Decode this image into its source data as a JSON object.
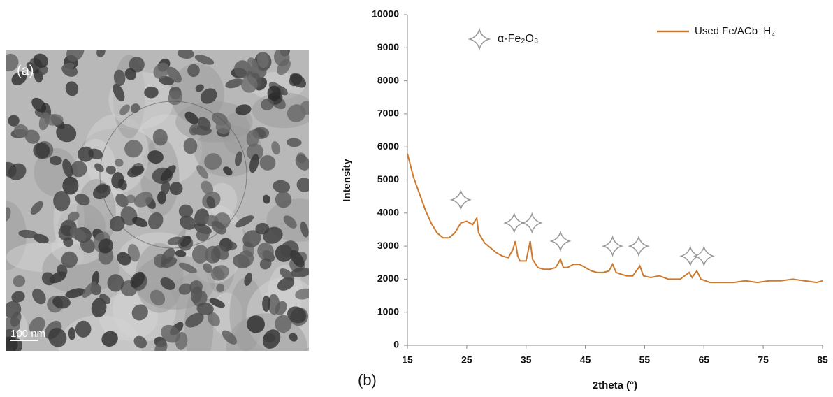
{
  "image": {
    "label": "(a)",
    "scale_bar": "100 nm"
  },
  "chart_data": {
    "type": "line",
    "panel_label": "(b)",
    "xlabel": "2theta (°)",
    "ylabel": "Intensity",
    "xlim": [
      15,
      85
    ],
    "xticks": [
      15,
      25,
      35,
      45,
      55,
      65,
      75,
      85
    ],
    "ylim": [
      0,
      10000
    ],
    "yticks": [
      0,
      1000,
      2000,
      3000,
      4000,
      5000,
      6000,
      7000,
      8000,
      9000,
      10000
    ],
    "x": [
      15,
      16,
      17,
      18,
      19,
      20,
      21,
      22,
      23,
      24,
      25,
      26,
      26.7,
      27,
      28,
      29,
      30,
      31,
      32,
      32.8,
      33.2,
      33.6,
      34,
      35,
      35.7,
      36.1,
      37,
      38,
      39,
      40,
      40.8,
      41.3,
      42,
      43,
      44,
      45,
      46,
      47,
      48,
      49,
      49.6,
      50.2,
      51,
      52,
      53,
      53.8,
      54.2,
      54.8,
      56,
      57.5,
      59,
      61,
      62.5,
      63,
      63.8,
      64.5,
      66,
      68,
      70,
      72,
      74,
      76,
      78,
      80,
      82,
      84,
      85
    ],
    "series": [
      {
        "name": "Used Fe/ACb_H₂",
        "color": "#cc7a2e",
        "values": [
          5800,
          5100,
          4600,
          4100,
          3700,
          3400,
          3250,
          3250,
          3400,
          3700,
          3750,
          3650,
          3850,
          3400,
          3100,
          2950,
          2800,
          2700,
          2650,
          2900,
          3150,
          2700,
          2550,
          2550,
          3150,
          2600,
          2350,
          2300,
          2300,
          2350,
          2600,
          2350,
          2350,
          2450,
          2450,
          2350,
          2250,
          2200,
          2200,
          2250,
          2450,
          2200,
          2150,
          2100,
          2100,
          2300,
          2400,
          2100,
          2050,
          2100,
          2000,
          2000,
          2200,
          2050,
          2250,
          2000,
          1900,
          1900,
          1900,
          1950,
          1900,
          1950,
          1950,
          2000,
          1950,
          1900,
          1950
        ]
      }
    ],
    "markers": {
      "name": "α-Fe₂O₃",
      "x": [
        24,
        33,
        36,
        40.8,
        49.6,
        54,
        62.7,
        65
      ],
      "y": [
        4400,
        3700,
        3700,
        3150,
        3000,
        3000,
        2700,
        2700
      ]
    },
    "legend": "upper right"
  }
}
